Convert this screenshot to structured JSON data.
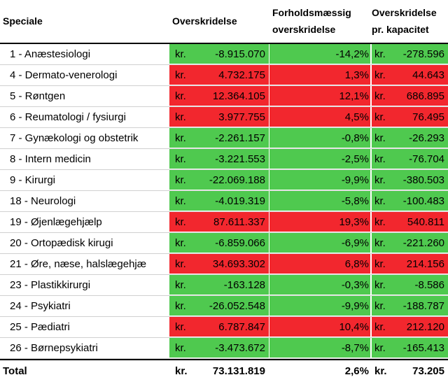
{
  "headers": {
    "speciale": "Speciale",
    "overskridelse": "Overskridelse",
    "relative_line1": "Forholdsmæssig",
    "relative_line2": "overskridelse",
    "capacity_line1": "Overskridelse",
    "capacity_line2": "pr. kapacitet"
  },
  "currency": "kr.",
  "rows": [
    {
      "name": "1 - Anæstesiologi",
      "amount": "-8.915.070",
      "pct": "-14,2%",
      "cap": "-278.596",
      "status": "green"
    },
    {
      "name": "4 - Dermato-venerologi",
      "amount": "4.732.175",
      "pct": "1,3%",
      "cap": "44.643",
      "status": "red"
    },
    {
      "name": "5 - Røntgen",
      "amount": "12.364.105",
      "pct": "12,1%",
      "cap": "686.895",
      "status": "red"
    },
    {
      "name": "6 - Reumatologi / fysiurgi",
      "amount": "3.977.755",
      "pct": "4,5%",
      "cap": "76.495",
      "status": "red"
    },
    {
      "name": "7 - Gynækologi og obstetrik",
      "amount": "-2.261.157",
      "pct": "-0,8%",
      "cap": "-26.293",
      "status": "green"
    },
    {
      "name": "8 - Intern medicin",
      "amount": "-3.221.553",
      "pct": "-2,5%",
      "cap": "-76.704",
      "status": "green"
    },
    {
      "name": "9 - Kirurgi",
      "amount": "-22.069.188",
      "pct": "-9,9%",
      "cap": "-380.503",
      "status": "green"
    },
    {
      "name": "18 - Neurologi",
      "amount": "-4.019.319",
      "pct": "-5,8%",
      "cap": "-100.483",
      "status": "green"
    },
    {
      "name": "19 - Øjenlægehjælp",
      "amount": "87.611.337",
      "pct": "19,3%",
      "cap": "540.811",
      "status": "red"
    },
    {
      "name": "20 - Ortopædisk kirugi",
      "amount": "-6.859.066",
      "pct": "-6,9%",
      "cap": "-221.260",
      "status": "green"
    },
    {
      "name": "21 - Øre, næse, halslægehjæ",
      "amount": "34.693.302",
      "pct": "6,8%",
      "cap": "214.156",
      "status": "red"
    },
    {
      "name": "23 - Plastikkirurgi",
      "amount": "-163.128",
      "pct": "-0,3%",
      "cap": "-8.586",
      "status": "green"
    },
    {
      "name": "24 - Psykiatri",
      "amount": "-26.052.548",
      "pct": "-9,9%",
      "cap": "-188.787",
      "status": "green"
    },
    {
      "name": "25 - Pædiatri",
      "amount": "6.787.847",
      "pct": "10,4%",
      "cap": "212.120",
      "status": "red"
    },
    {
      "name": "26 - Børnepsykiatri",
      "amount": "-3.473.672",
      "pct": "-8,7%",
      "cap": "-165.413",
      "status": "green"
    }
  ],
  "total": {
    "name": "Total",
    "amount": "73.131.819",
    "pct": "2,6%",
    "cap": "73.205"
  },
  "colors": {
    "green": "#4fc94f",
    "red": "#f2272e"
  }
}
